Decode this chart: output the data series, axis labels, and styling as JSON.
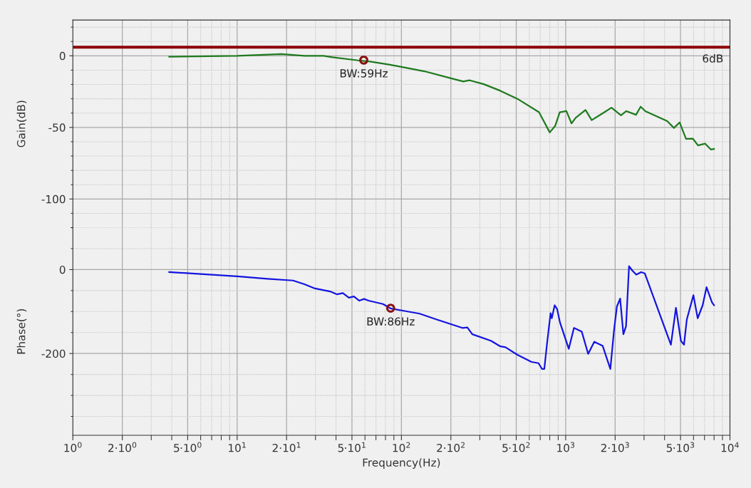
{
  "chart_data": [
    {
      "type": "line",
      "ylabel": "Gain(dB)",
      "xlim": [
        1,
        10000
      ],
      "ylim": [
        -120,
        25
      ],
      "log": "x",
      "grid": true,
      "tick_labels": "y",
      "marker": "none",
      "line_style": "solid",
      "xticks": [
        {
          "value": 1,
          "label": null
        },
        {
          "value": 2,
          "label": null
        },
        {
          "value": 5,
          "label": null
        },
        {
          "value": 10,
          "label": null
        },
        {
          "value": 20,
          "label": null
        },
        {
          "value": 50,
          "label": null
        },
        {
          "value": 100,
          "label": null
        },
        {
          "value": 200,
          "label": null
        },
        {
          "value": 500,
          "label": null
        },
        {
          "value": 1000,
          "label": null
        },
        {
          "value": 2000,
          "label": null
        },
        {
          "value": 5000,
          "label": null
        },
        {
          "value": 10000,
          "label": null
        }
      ],
      "yticks": [
        0,
        -50,
        -100
      ],
      "series": [
        {
          "color": "#1f7a1f",
          "x": [
            3.86,
            10,
            18.6,
            25.7,
            33.6,
            38,
            54.5,
            64.4,
            84,
            100,
            138,
            202,
            238,
            260,
            317,
            400,
            508,
            688,
            800,
            864,
            920,
            1010,
            1085,
            1150,
            1320,
            1440,
            1680,
            1900,
            2170,
            2340,
            2680,
            2860,
            3050,
            4150,
            4560,
            4940,
            5400,
            5950,
            6390,
            7050,
            7640,
            8000
          ],
          "values": [
            -0.6,
            0,
            1.2,
            0,
            0,
            -1,
            -3.2,
            -4,
            -6.1,
            -7.7,
            -10.8,
            -15.8,
            -17.9,
            -17.1,
            -19.8,
            -24.4,
            -30,
            -39.4,
            -53.5,
            -48.8,
            -39.4,
            -38.6,
            -47.2,
            -43.3,
            -37.8,
            -44.9,
            -40.1,
            -36.2,
            -41.5,
            -38.6,
            -41.2,
            -35.5,
            -38.6,
            -45.6,
            -50.4,
            -46.5,
            -58,
            -57.9,
            -62.6,
            -61.3,
            -65.4,
            -65
          ]
        }
      ],
      "ref_lines": [
        {
          "axis": "y",
          "value": 6,
          "label": "6dB",
          "color": "#8b0000",
          "line_style": "solid"
        }
      ],
      "annotations": [
        {
          "text": "BW:59Hz",
          "x": 59,
          "y": -3
        }
      ]
    },
    {
      "type": "line",
      "xlabel": "Frequency(Hz)",
      "ylabel": "Phase(°)",
      "xlim": [
        1,
        10000
      ],
      "ylim": [
        -395,
        100
      ],
      "log": "x",
      "grid": true,
      "marker": "none",
      "line_style": "solid",
      "xticks": [
        {
          "value": 1,
          "label": "10$^{0}$"
        },
        {
          "value": 2,
          "label": "2·10$^{0}$"
        },
        {
          "value": 5,
          "label": "5·10$^{0}$"
        },
        {
          "value": 10,
          "label": "10$^{1}$"
        },
        {
          "value": 20,
          "label": "2·10$^{1}$"
        },
        {
          "value": 50,
          "label": "5·10$^{1}$"
        },
        {
          "value": 100,
          "label": "10$^{2}$"
        },
        {
          "value": 200,
          "label": "2·10$^{2}$"
        },
        {
          "value": 500,
          "label": "5·10$^{2}$"
        },
        {
          "value": 1000,
          "label": "10$^{3}$"
        },
        {
          "value": 2000,
          "label": "2·10$^{3}$"
        },
        {
          "value": 5000,
          "label": "5·10$^{3}$"
        },
        {
          "value": 10000,
          "label": "10$^{4}$"
        }
      ],
      "yticks": [
        0,
        -200
      ],
      "series": [
        {
          "color": "#1414e0",
          "x": [
            3.86,
            10,
            15.3,
            21.9,
            25.7,
            29.8,
            36.8,
            40.6,
            44,
            47.9,
            51.4,
            55.4,
            59.3,
            63.1,
            77.2,
            86.5,
            106,
            129,
            164,
            235,
            252,
            270,
            352,
            400,
            430,
            508,
            619,
            683,
            718,
            741,
            770,
            809,
            823,
            857,
            887,
            923,
            1044,
            1123,
            1253,
            1370,
            1493,
            1680,
            1870,
            1970,
            2050,
            2145,
            2245,
            2330,
            2430,
            2555,
            2690,
            2880,
            3030,
            4370,
            4690,
            5030,
            5250,
            5460,
            5990,
            6360,
            6820,
            7200,
            7770,
            8000
          ],
          "values": [
            -6,
            -16,
            -22,
            -26,
            -35,
            -45,
            -52,
            -59,
            -56,
            -67,
            -64,
            -74,
            -70,
            -74,
            -82,
            -93,
            -99,
            -105,
            -119,
            -139,
            -138,
            -154,
            -170,
            -183,
            -185,
            -203,
            -220,
            -223,
            -237,
            -237,
            -176,
            -104,
            -116,
            -85,
            -94,
            -126,
            -189,
            -139,
            -148,
            -201,
            -172,
            -182,
            -237,
            -144,
            -88,
            -69,
            -154,
            -135,
            8,
            -3,
            -12,
            -6,
            -9,
            -179,
            -91,
            -170,
            -179,
            -119,
            -61,
            -116,
            -85,
            -42,
            -78,
            -85
          ]
        }
      ],
      "annotations": [
        {
          "text": "BW:86Hz",
          "x": 86,
          "y": -92
        }
      ]
    }
  ]
}
